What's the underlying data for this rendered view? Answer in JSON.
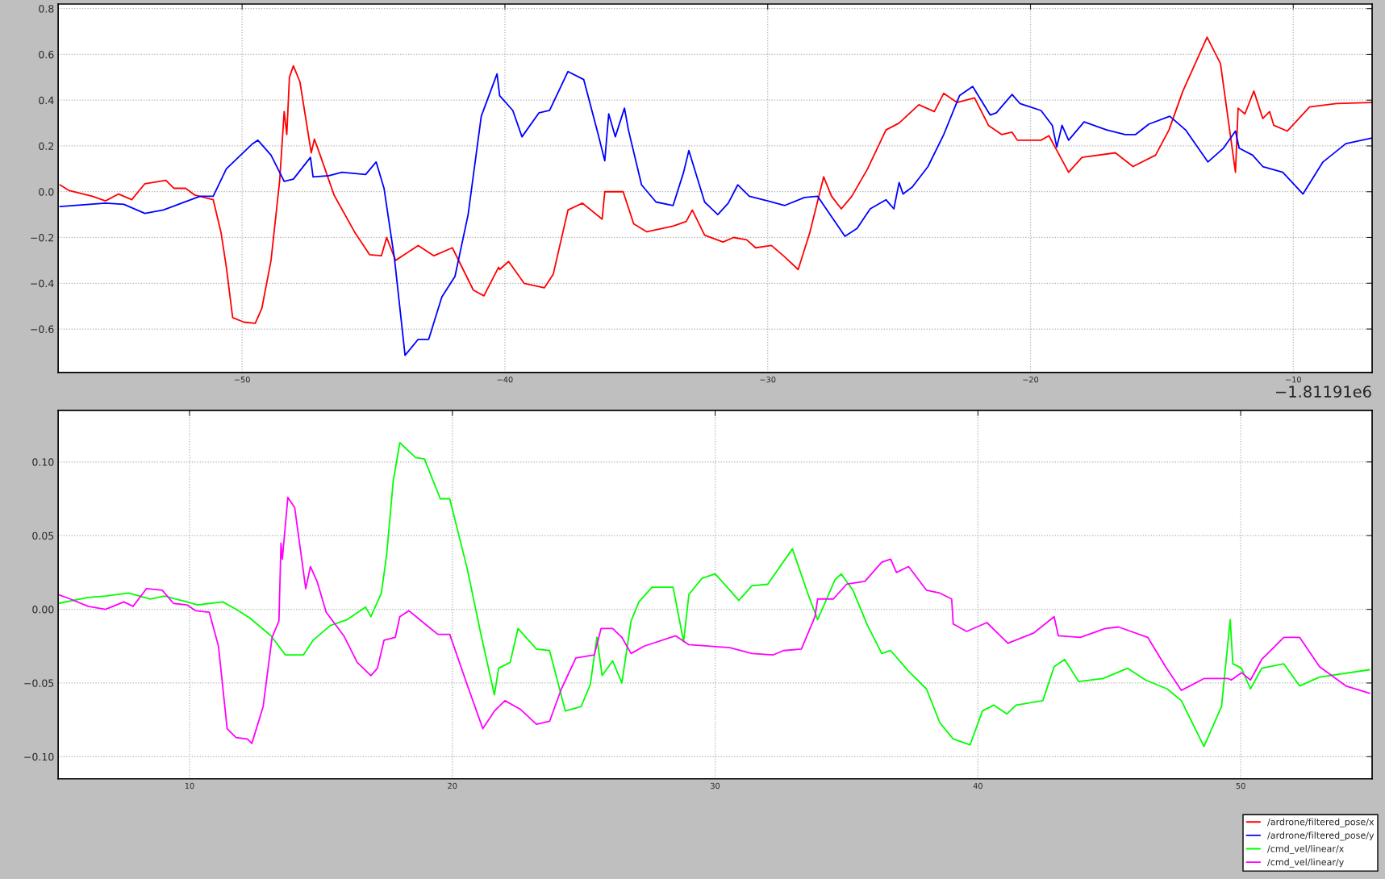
{
  "chart_data": [
    {
      "type": "line",
      "xlim": [
        -57,
        -7
      ],
      "ylim": [
        -0.79,
        0.82
      ],
      "xticks": [
        {
          "value": -50,
          "label": "−50"
        },
        {
          "value": -40,
          "label": "−40"
        },
        {
          "value": -30,
          "label": "−30"
        },
        {
          "value": -20,
          "label": "−20"
        },
        {
          "value": -10,
          "label": "−10"
        }
      ],
      "yticks": [
        {
          "value": -0.6,
          "label": "−0.6"
        },
        {
          "value": -0.4,
          "label": "−0.4"
        },
        {
          "value": -0.2,
          "label": "−0.2"
        },
        {
          "value": 0,
          "label": "0.0"
        },
        {
          "value": 0.2,
          "label": "0.2"
        },
        {
          "value": 0.4,
          "label": "0.4"
        },
        {
          "value": 0.6,
          "label": "0.6"
        },
        {
          "value": 0.8,
          "label": "0.8"
        }
      ],
      "grid": true,
      "legend": "bottom right",
      "marker": "none",
      "line_style": "solid",
      "annotations": [
        "−1.81191e6"
      ],
      "series": [
        {
          "name": "/ardrone/filtered_pose/x",
          "color": "#ff0000",
          "x": [
            -56.93,
            -56.6,
            -55.7,
            -55.2,
            -54.7,
            -54.2,
            -53.7,
            -52.9,
            -52.6,
            -52.15,
            -51.8,
            -51.1,
            -50.8,
            -50.6,
            -50.36,
            -49.93,
            -49.5,
            -49.25,
            -48.9,
            -48.57,
            -48.4,
            -48.3,
            -48.2,
            -48.05,
            -47.8,
            -47.37,
            -47.25,
            -47.03,
            -46.5,
            -45.7,
            -45.15,
            -44.7,
            -44.5,
            -44.16,
            -43.3,
            -42.7,
            -42.0,
            -41.2,
            -40.8,
            -40.24,
            -40.2,
            -39.86,
            -39.27,
            -38.5,
            -38.16,
            -37.6,
            -37.05,
            -36.3,
            -36.2,
            -35.5,
            -35.1,
            -34.6,
            -33.6,
            -33.1,
            -32.87,
            -32.4,
            -31.7,
            -31.3,
            -30.8,
            -30.46,
            -29.86,
            -29.35,
            -28.84,
            -28.4,
            -27.87,
            -27.57,
            -27.2,
            -26.8,
            -26.2,
            -25.5,
            -25.0,
            -24.25,
            -23.66,
            -23.3,
            -22.8,
            -22.13,
            -21.6,
            -21.1,
            -20.7,
            -20.5,
            -19.6,
            -19.3,
            -18.9,
            -18.55,
            -18.04,
            -16.77,
            -16.1,
            -15.24,
            -14.73,
            -14.2,
            -13.28,
            -12.77,
            -12.2,
            -12.1,
            -11.84,
            -11.5,
            -11.16,
            -10.9,
            -10.74,
            -10.23,
            -9.38,
            -8.35,
            -7.0
          ],
          "values": [
            0.03,
            0.006,
            -0.02,
            -0.04,
            -0.01,
            -0.035,
            0.035,
            0.05,
            0.015,
            0.015,
            -0.015,
            -0.035,
            -0.18,
            -0.33,
            -0.55,
            -0.57,
            -0.575,
            -0.51,
            -0.3,
            0.05,
            0.35,
            0.25,
            0.5,
            0.55,
            0.48,
            0.17,
            0.23,
            0.16,
            -0.015,
            -0.18,
            -0.275,
            -0.28,
            -0.2,
            -0.3,
            -0.235,
            -0.28,
            -0.245,
            -0.43,
            -0.455,
            -0.33,
            -0.34,
            -0.305,
            -0.4,
            -0.42,
            -0.36,
            -0.08,
            -0.05,
            -0.12,
            0.0,
            0.0,
            -0.14,
            -0.175,
            -0.15,
            -0.13,
            -0.08,
            -0.19,
            -0.22,
            -0.2,
            -0.21,
            -0.245,
            -0.235,
            -0.285,
            -0.34,
            -0.18,
            0.065,
            -0.02,
            -0.075,
            -0.02,
            0.1,
            0.27,
            0.3,
            0.38,
            0.35,
            0.43,
            0.39,
            0.41,
            0.29,
            0.25,
            0.26,
            0.225,
            0.225,
            0.245,
            0.16,
            0.085,
            0.15,
            0.17,
            0.11,
            0.16,
            0.27,
            0.44,
            0.675,
            0.56,
            0.085,
            0.365,
            0.34,
            0.44,
            0.32,
            0.35,
            0.29,
            0.265,
            0.37,
            0.385,
            0.39
          ]
        },
        {
          "name": "/ardrone/filtered_pose/y",
          "color": "#0000ff",
          "x": [
            -56.93,
            -55.2,
            -54.5,
            -53.7,
            -53.0,
            -52.3,
            -51.6,
            -51.1,
            -50.6,
            -49.6,
            -49.4,
            -48.9,
            -48.4,
            -48.05,
            -47.4,
            -47.3,
            -46.7,
            -46.2,
            -45.3,
            -44.9,
            -44.6,
            -44.2,
            -43.8,
            -43.3,
            -42.9,
            -42.4,
            -41.9,
            -41.4,
            -40.9,
            -40.3,
            -40.2,
            -39.7,
            -39.35,
            -38.7,
            -38.3,
            -37.6,
            -37.0,
            -36.45,
            -36.2,
            -36.05,
            -35.8,
            -35.45,
            -35.3,
            -34.8,
            -34.25,
            -33.6,
            -33.2,
            -33.0,
            -32.4,
            -31.9,
            -31.5,
            -31.14,
            -30.7,
            -30.0,
            -29.35,
            -28.6,
            -28.1,
            -27.06,
            -26.6,
            -26.1,
            -25.5,
            -25.2,
            -25.0,
            -24.85,
            -24.5,
            -23.9,
            -23.3,
            -22.7,
            -22.2,
            -21.8,
            -21.53,
            -21.3,
            -20.7,
            -20.4,
            -19.6,
            -19.17,
            -19.0,
            -18.8,
            -18.55,
            -17.96,
            -17.1,
            -16.4,
            -16.0,
            -15.5,
            -14.7,
            -14.1,
            -13.25,
            -12.66,
            -12.2,
            -12.06,
            -11.55,
            -11.16,
            -10.4,
            -9.63,
            -8.87,
            -8.0,
            -7.0
          ],
          "values": [
            -0.065,
            -0.05,
            -0.055,
            -0.095,
            -0.08,
            -0.05,
            -0.02,
            -0.02,
            0.1,
            0.21,
            0.225,
            0.16,
            0.045,
            0.055,
            0.15,
            0.065,
            0.07,
            0.085,
            0.075,
            0.13,
            0.015,
            -0.295,
            -0.715,
            -0.645,
            -0.645,
            -0.46,
            -0.37,
            -0.1,
            0.33,
            0.515,
            0.42,
            0.355,
            0.24,
            0.345,
            0.355,
            0.525,
            0.49,
            0.25,
            0.135,
            0.34,
            0.24,
            0.365,
            0.27,
            0.03,
            -0.045,
            -0.06,
            0.085,
            0.18,
            -0.045,
            -0.1,
            -0.05,
            0.03,
            -0.02,
            -0.04,
            -0.06,
            -0.025,
            -0.02,
            -0.195,
            -0.16,
            -0.075,
            -0.035,
            -0.075,
            0.04,
            -0.01,
            0.02,
            0.11,
            0.25,
            0.42,
            0.46,
            0.385,
            0.335,
            0.345,
            0.425,
            0.385,
            0.355,
            0.29,
            0.195,
            0.29,
            0.225,
            0.305,
            0.27,
            0.25,
            0.25,
            0.295,
            0.33,
            0.27,
            0.13,
            0.19,
            0.265,
            0.19,
            0.16,
            0.11,
            0.085,
            -0.01,
            0.13,
            0.21,
            0.235
          ]
        }
      ]
    },
    {
      "type": "line",
      "xlim": [
        5,
        55
      ],
      "ylim": [
        -0.115,
        0.135
      ],
      "xticks": [
        10,
        20,
        30,
        40,
        50
      ],
      "yticks": [
        {
          "value": -0.1,
          "label": "−0.10"
        },
        {
          "value": -0.05,
          "label": "−0.05"
        },
        {
          "value": 0,
          "label": "0.00"
        },
        {
          "value": 0.05,
          "label": "0.05"
        },
        {
          "value": 0.1,
          "label": "0.10"
        }
      ],
      "grid": true,
      "legend": "bottom right",
      "marker": "none",
      "line_style": "solid",
      "series": [
        {
          "name": "/cmd_vel/linear/x",
          "color": "#00ff00",
          "x": [
            5.0,
            6.14,
            6.8,
            7.68,
            8.5,
            9.04,
            9.9,
            10.3,
            11.26,
            11.77,
            12.3,
            13.1,
            13.65,
            14.33,
            14.7,
            15.36,
            16.0,
            16.7,
            16.9,
            17.3,
            17.5,
            17.75,
            18.0,
            18.6,
            18.94,
            19.54,
            19.9,
            20.56,
            21.1,
            21.6,
            21.76,
            22.2,
            22.5,
            23.2,
            23.7,
            24.3,
            24.9,
            25.25,
            25.5,
            25.7,
            26.1,
            26.45,
            26.8,
            27.1,
            27.6,
            28.4,
            28.8,
            29.0,
            29.5,
            30.0,
            30.56,
            30.9,
            31.4,
            32.0,
            32.94,
            33.54,
            33.9,
            34.56,
            34.8,
            35.24,
            35.8,
            36.34,
            36.68,
            37.36,
            38.04,
            38.55,
            39.06,
            39.7,
            40.17,
            40.6,
            41.1,
            41.45,
            42.47,
            42.9,
            43.3,
            43.83,
            44.76,
            45.7,
            46.38,
            47.2,
            47.74,
            48.6,
            49.27,
            49.6,
            49.7,
            50.03,
            50.37,
            50.8,
            51.64,
            52.24,
            53.0,
            54.9
          ],
          "values": [
            0.004,
            0.008,
            0.009,
            0.011,
            0.007,
            0.009,
            0.005,
            0.003,
            0.005,
            0.0,
            -0.006,
            -0.018,
            -0.031,
            -0.031,
            -0.021,
            -0.011,
            -0.007,
            0.0015,
            -0.005,
            0.011,
            0.037,
            0.087,
            0.113,
            0.103,
            0.102,
            0.075,
            0.075,
            0.028,
            -0.018,
            -0.058,
            -0.04,
            -0.036,
            -0.013,
            -0.027,
            -0.028,
            -0.069,
            -0.066,
            -0.051,
            -0.019,
            -0.045,
            -0.035,
            -0.05,
            -0.008,
            0.005,
            0.015,
            0.015,
            -0.022,
            0.01,
            0.021,
            0.024,
            0.013,
            0.006,
            0.016,
            0.017,
            0.041,
            0.01,
            -0.007,
            0.02,
            0.024,
            0.013,
            -0.011,
            -0.03,
            -0.028,
            -0.042,
            -0.054,
            -0.077,
            -0.088,
            -0.092,
            -0.069,
            -0.065,
            -0.071,
            -0.065,
            -0.062,
            -0.039,
            -0.034,
            -0.049,
            -0.047,
            -0.04,
            -0.048,
            -0.054,
            -0.062,
            -0.093,
            -0.066,
            -0.007,
            -0.037,
            -0.04,
            -0.054,
            -0.04,
            -0.037,
            -0.052,
            -0.046,
            -0.041
          ]
        },
        {
          "name": "/cmd_vel/linear/y",
          "color": "#ff00ff",
          "x": [
            5.0,
            5.46,
            6.14,
            6.8,
            7.5,
            7.85,
            8.36,
            8.96,
            9.39,
            9.9,
            10.24,
            10.75,
            11.1,
            11.43,
            11.77,
            12.2,
            12.37,
            12.8,
            13.14,
            13.4,
            13.48,
            13.53,
            13.74,
            14.0,
            14.42,
            14.6,
            14.85,
            15.2,
            15.87,
            16.38,
            16.9,
            17.15,
            17.4,
            17.83,
            18.0,
            18.35,
            19.1,
            19.45,
            19.9,
            20.56,
            21.16,
            21.6,
            22.0,
            22.6,
            23.2,
            23.7,
            24.15,
            24.7,
            25.4,
            25.66,
            26.1,
            26.45,
            26.8,
            27.3,
            28.5,
            29.0,
            30.56,
            31.4,
            32.2,
            32.6,
            33.28,
            33.8,
            33.9,
            34.5,
            35.0,
            35.7,
            36.34,
            36.68,
            36.9,
            37.36,
            38.04,
            38.55,
            39.0,
            39.06,
            39.57,
            40.34,
            40.85,
            41.14,
            42.13,
            42.9,
            43.06,
            43.9,
            44.84,
            45.35,
            46.46,
            47.14,
            47.74,
            48.6,
            49.52,
            49.64,
            50.03,
            50.37,
            50.8,
            51.64,
            52.24,
            53.0,
            54.0,
            54.9
          ],
          "values": [
            0.01,
            0.007,
            0.002,
            0.0,
            0.005,
            0.002,
            0.014,
            0.013,
            0.004,
            0.003,
            -0.001,
            -0.002,
            -0.025,
            -0.081,
            -0.087,
            -0.088,
            -0.091,
            -0.066,
            -0.019,
            -0.008,
            0.045,
            0.034,
            0.076,
            0.069,
            0.014,
            0.029,
            0.019,
            -0.002,
            -0.018,
            -0.036,
            -0.045,
            -0.04,
            -0.021,
            -0.019,
            -0.005,
            -0.001,
            -0.012,
            -0.017,
            -0.017,
            -0.051,
            -0.081,
            -0.069,
            -0.062,
            -0.068,
            -0.078,
            -0.076,
            -0.054,
            -0.033,
            -0.031,
            -0.013,
            -0.013,
            -0.019,
            -0.03,
            -0.025,
            -0.018,
            -0.024,
            -0.026,
            -0.03,
            -0.031,
            -0.028,
            -0.027,
            -0.005,
            0.007,
            0.007,
            0.017,
            0.019,
            0.032,
            0.034,
            0.025,
            0.029,
            0.013,
            0.011,
            0.007,
            -0.01,
            -0.015,
            -0.009,
            -0.018,
            -0.023,
            -0.016,
            -0.005,
            -0.018,
            -0.019,
            -0.013,
            -0.012,
            -0.019,
            -0.039,
            -0.055,
            -0.047,
            -0.047,
            -0.048,
            -0.043,
            -0.048,
            -0.034,
            -0.019,
            -0.019,
            -0.039,
            -0.052,
            -0.057
          ]
        }
      ]
    }
  ]
}
